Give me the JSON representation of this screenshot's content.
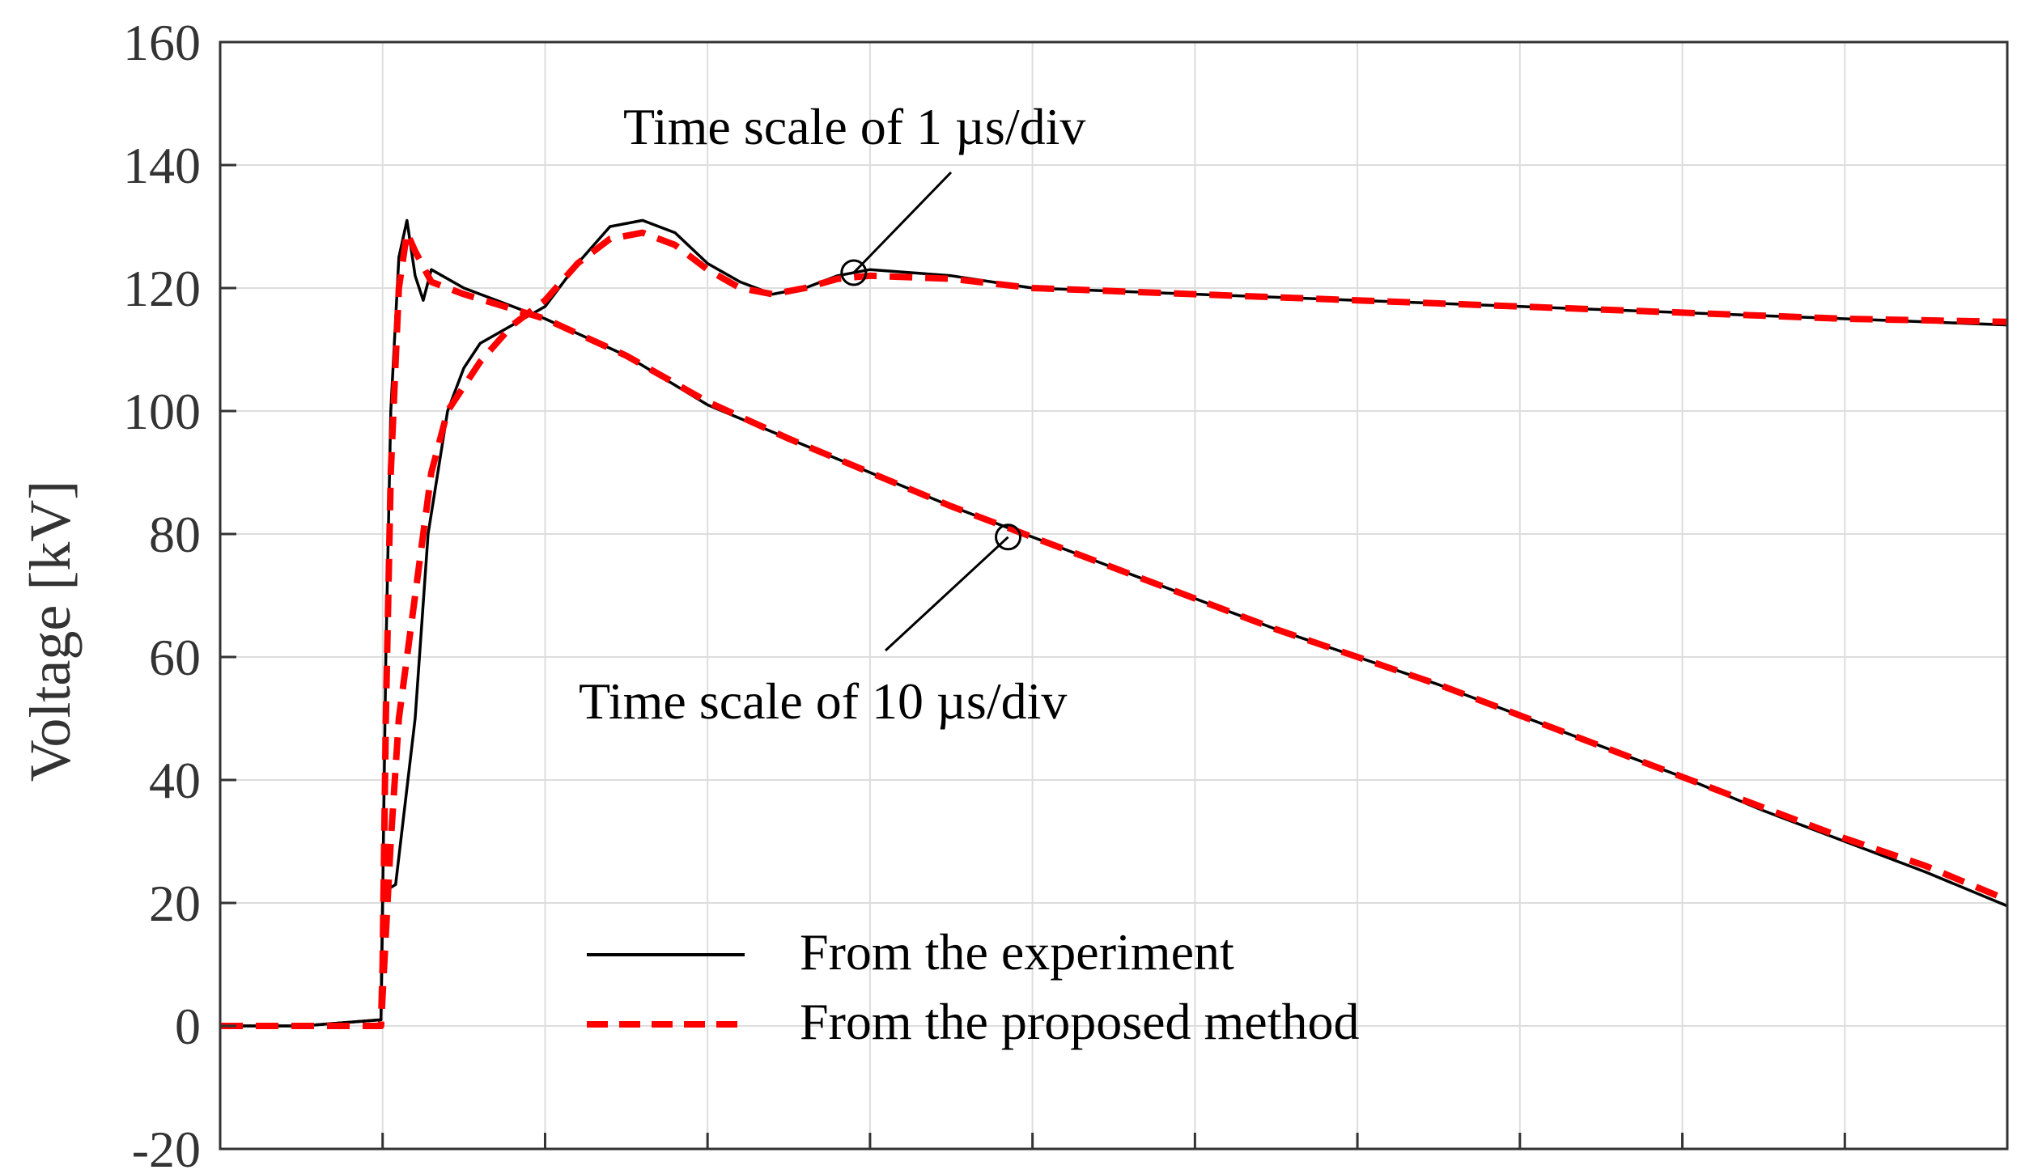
{
  "chart_data": {
    "type": "line",
    "title": "",
    "xlabel": "",
    "ylabel": "Voltage [kV]",
    "ylim": [
      -20,
      160
    ],
    "yticks": [
      "160",
      "140",
      "120",
      "100",
      "80",
      "60",
      "40",
      "20",
      "0",
      "-20"
    ],
    "xlim": [
      0,
      11
    ],
    "x_divisions": 11,
    "grid": true,
    "colors": {
      "experiment": "#000000",
      "method": "#ff0000"
    },
    "annotations": [
      {
        "id": "fast",
        "text": "Time scale of 1 µs/div",
        "target": [
          3.9,
          122.5
        ]
      },
      {
        "id": "slow",
        "text": "Time scale of 10 µs/div",
        "target": [
          4.85,
          79.5
        ]
      }
    ],
    "legend": {
      "placement": "bottom-center",
      "entries": [
        {
          "label": "From the experiment",
          "style": "solid"
        },
        {
          "label": "From the proposed method",
          "style": "dashed"
        }
      ]
    },
    "series": [
      {
        "name": "From the experiment",
        "group": "1 µs/div",
        "style": "solid",
        "x": [
          0,
          0.5,
          0.99,
          1.0,
          1.02,
          1.08,
          1.2,
          1.28,
          1.4,
          1.5,
          1.6,
          1.8,
          2.0,
          2.2,
          2.4,
          2.6,
          2.8,
          3.0,
          3.2,
          3.4,
          3.6,
          3.8,
          4.0,
          4.5,
          5.0,
          6.0,
          7.0,
          8.0,
          9.0,
          10.0,
          11.0
        ],
        "y": [
          0,
          0,
          1,
          20,
          22,
          23,
          50,
          80,
          100,
          107,
          111,
          114,
          117,
          124,
          130,
          131,
          129,
          124,
          121,
          119,
          120,
          122,
          123,
          122,
          120,
          119,
          118,
          117,
          116,
          115,
          114
        ]
      },
      {
        "name": "From the proposed method",
        "group": "1 µs/div",
        "style": "dashed",
        "x": [
          0,
          0.5,
          0.99,
          1.0,
          1.05,
          1.1,
          1.2,
          1.3,
          1.4,
          1.6,
          1.8,
          2.0,
          2.2,
          2.4,
          2.6,
          2.8,
          3.0,
          3.2,
          3.4,
          3.6,
          3.8,
          4.0,
          4.5,
          5.0,
          6.0,
          7.0,
          8.0,
          9.0,
          10.0,
          11.0
        ],
        "y": [
          0,
          0,
          0,
          5,
          30,
          50,
          70,
          90,
          100,
          108,
          114,
          118,
          124,
          128,
          129,
          127,
          123,
          120,
          119,
          120,
          121.5,
          122,
          121.5,
          120,
          119,
          118,
          117,
          116,
          115,
          114.5
        ]
      },
      {
        "name": "From the experiment",
        "group": "10 µs/div",
        "style": "solid",
        "x": [
          0,
          0.5,
          0.99,
          1.0,
          1.02,
          1.05,
          1.1,
          1.15,
          1.2,
          1.25,
          1.3,
          1.5,
          2.0,
          2.5,
          3.0,
          3.5,
          4.0,
          4.5,
          5.0,
          5.5,
          6.0,
          6.5,
          7.0,
          7.5,
          8.0,
          8.5,
          9.0,
          9.5,
          10.0,
          10.5,
          11.0
        ],
        "y": [
          0,
          0,
          1,
          20,
          60,
          100,
          125,
          131,
          122,
          118,
          123,
          120,
          115,
          109,
          101,
          95.5,
          90,
          84.5,
          79.5,
          74.5,
          69.5,
          64.5,
          60,
          55.5,
          50.5,
          45.5,
          40.5,
          35,
          30,
          25,
          19.5
        ]
      },
      {
        "name": "From the proposed method",
        "group": "10 µs/div",
        "style": "dashed",
        "x": [
          0,
          0.5,
          0.99,
          1.0,
          1.02,
          1.05,
          1.1,
          1.15,
          1.2,
          1.3,
          1.5,
          2.0,
          2.5,
          3.0,
          3.5,
          4.0,
          4.5,
          5.0,
          5.5,
          6.0,
          6.5,
          7.0,
          7.5,
          8.0,
          8.5,
          9.0,
          9.5,
          10.0,
          10.5,
          11.0
        ],
        "y": [
          0,
          0,
          0,
          10,
          50,
          90,
          120,
          129,
          126,
          121,
          119,
          115,
          109,
          101.5,
          95.5,
          90,
          84.5,
          79.5,
          74.5,
          69.5,
          64.5,
          60,
          55.5,
          50.5,
          45.5,
          40.5,
          35.5,
          30.5,
          26,
          20.5
        ]
      }
    ]
  }
}
